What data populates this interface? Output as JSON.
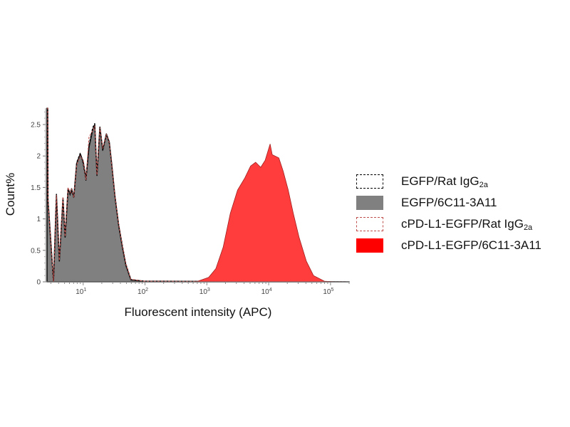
{
  "chart_data": {
    "type": "area",
    "title": "",
    "xlabel": "Fluorescent intensity (APC)",
    "ylabel": "Count%",
    "x_scale": "log",
    "xlim": [
      2.6,
      200000
    ],
    "ylim": [
      0,
      2.76
    ],
    "x_ticks": [
      10,
      100,
      1000,
      10000,
      100000
    ],
    "x_tick_labels": [
      {
        "base": "10",
        "exp": "1"
      },
      {
        "base": "10",
        "exp": "2"
      },
      {
        "base": "10",
        "exp": "3"
      },
      {
        "base": "10",
        "exp": "4"
      },
      {
        "base": "10",
        "exp": "5"
      }
    ],
    "y_ticks": [
      0,
      0.5,
      1,
      1.5,
      2,
      2.5
    ],
    "y_tick_labels": [
      "0",
      "0.5",
      "1",
      "1.5",
      "2",
      "2.5"
    ],
    "grid": false,
    "legend_position": "right",
    "series": [
      {
        "name": "EGFP/6C11-3A11",
        "label_main": "EGFP/6C11-3A11",
        "label_sub": "",
        "style": "filled",
        "color": "#808080",
        "stroke": "#111111",
        "x": [
          2.6,
          2.67,
          2.7,
          3.31,
          3.69,
          4.11,
          4.71,
          5.1,
          5.68,
          6.16,
          6.5,
          7.05,
          7.85,
          8.98,
          10,
          11.1,
          12.4,
          14.2,
          15.4,
          16.7,
          18.6,
          20.7,
          23.7,
          26.4,
          28.6,
          32.7,
          37.4,
          42.8,
          49,
          59.2,
          96,
          200000
        ],
        "y": [
          2.76,
          2.76,
          1.3,
          0,
          1.39,
          0.33,
          1.33,
          0.71,
          1.48,
          1.4,
          1.48,
          1.35,
          1.88,
          2.03,
          1.91,
          1.65,
          2.14,
          2.41,
          2.5,
          1.69,
          2.46,
          2.1,
          2.35,
          2.22,
          1.91,
          1.35,
          0.9,
          0.56,
          0.26,
          0.03,
          0.01,
          0
        ]
      },
      {
        "name": "EGFP/Rat IgG2a",
        "label_main": "EGFP/Rat IgG",
        "label_sub": "2a",
        "style": "dashed",
        "color": "#000000",
        "x": [
          2.6,
          2.67,
          2.7,
          3.31,
          3.69,
          4.11,
          4.71,
          5.1,
          5.68,
          6.16,
          6.5,
          7.05,
          7.85,
          8.98,
          10,
          11.1,
          12.4,
          14.2,
          15.4,
          16.7,
          18.6,
          20.7,
          23.7,
          26.4,
          28.6,
          32.7,
          37.4,
          42.8,
          49,
          59.2,
          96,
          200000
        ],
        "y": [
          2.76,
          2.76,
          1.3,
          0,
          1.37,
          0.33,
          1.31,
          0.7,
          1.45,
          1.38,
          1.44,
          1.33,
          1.9,
          2.05,
          1.87,
          1.6,
          2.18,
          2.45,
          2.52,
          1.72,
          2.44,
          2.08,
          2.33,
          2.2,
          1.94,
          1.38,
          0.93,
          0.6,
          0.29,
          0.04,
          0.01,
          0
        ]
      },
      {
        "name": "cPD-L1-EGFP/Rat IgG2a",
        "label_main": "cPD-L1-EGFP/Rat IgG",
        "label_sub": "2a",
        "style": "dashed",
        "color": "#c0504d",
        "x": [
          2.6,
          2.67,
          2.7,
          3.31,
          3.69,
          4.11,
          4.71,
          5.1,
          5.68,
          6.16,
          6.5,
          7.05,
          7.85,
          8.98,
          10,
          11.1,
          12.4,
          14.2,
          15.4,
          16.7,
          18.6,
          20.7,
          23.7,
          26.4,
          28.6,
          32.7,
          37.4,
          42.8,
          49,
          59.2,
          96,
          200000
        ],
        "y": [
          2.76,
          2.76,
          1.3,
          0,
          1.38,
          0.34,
          1.35,
          0.72,
          1.5,
          1.42,
          1.47,
          1.34,
          1.86,
          2.0,
          1.93,
          1.62,
          2.3,
          2.4,
          2.48,
          1.7,
          2.45,
          2.12,
          2.34,
          2.21,
          1.9,
          1.36,
          0.92,
          0.58,
          0.28,
          0.04,
          0.01,
          0
        ]
      },
      {
        "name": "cPD-L1-EGFP/6C11-3A11",
        "label_main": "cPD-L1-EGFP/6C11-3A11",
        "label_sub": "",
        "style": "filled",
        "color": "#ff3333",
        "stroke": "#a02020",
        "x": [
          2.6,
          600,
          714,
          1069,
          1400,
          1834,
          2399,
          3141,
          4111,
          5100,
          6152,
          7434,
          8750,
          10550,
          11430,
          14580,
          17140,
          20700,
          25000,
          31000,
          40550,
          53100,
          79600,
          120000,
          200000
        ],
        "y": [
          0,
          0,
          0.01,
          0.07,
          0.21,
          0.55,
          1.09,
          1.46,
          1.65,
          1.84,
          1.9,
          1.82,
          1.93,
          2.19,
          2.02,
          1.97,
          1.76,
          1.46,
          1.09,
          0.71,
          0.33,
          0.1,
          0.01,
          0,
          0
        ]
      }
    ],
    "legend_order": [
      1,
      0,
      2,
      3
    ]
  }
}
